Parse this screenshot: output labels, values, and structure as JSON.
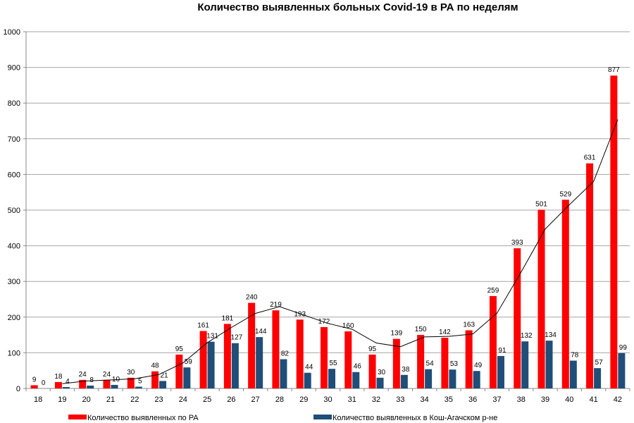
{
  "chart_data": {
    "type": "bar",
    "title": "Количество выявленных больных Covid-19 в РА по неделям",
    "categories": [
      "18",
      "19",
      "20",
      "21",
      "22",
      "23",
      "24",
      "25",
      "26",
      "27",
      "28",
      "29",
      "30",
      "31",
      "32",
      "33",
      "34",
      "35",
      "36",
      "37",
      "38",
      "39",
      "40",
      "41",
      "42"
    ],
    "series": [
      {
        "name": "Количество выявленных по РА",
        "color": "#ff0000",
        "values": [
          9,
          18,
          24,
          24,
          30,
          48,
          95,
          161,
          181,
          240,
          219,
          193,
          172,
          160,
          95,
          139,
          150,
          142,
          163,
          259,
          393,
          501,
          529,
          631,
          877
        ]
      },
      {
        "name": "Количество выявленных в Кош-Агачском р-не",
        "color": "#1f4e79",
        "values": [
          0,
          4,
          8,
          10,
          5,
          21,
          59,
          131,
          127,
          144,
          82,
          44,
          55,
          46,
          30,
          38,
          54,
          53,
          49,
          91,
          132,
          134,
          78,
          57,
          99
        ]
      }
    ],
    "trendline": {
      "type": "moving_average",
      "period": 2,
      "series": 0,
      "color": "#000000"
    },
    "ylim": [
      0,
      1000
    ],
    "yticks": [
      "0",
      "100",
      "200",
      "300",
      "400",
      "500",
      "600",
      "700",
      "800",
      "900",
      "1000"
    ],
    "grid": true,
    "legend": "bottom"
  }
}
